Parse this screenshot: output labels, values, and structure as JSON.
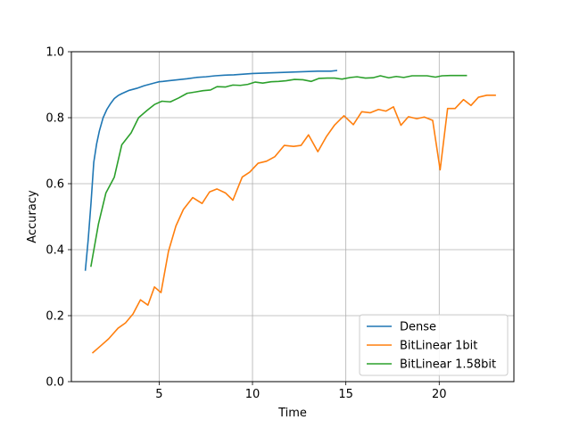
{
  "chart_data": {
    "type": "line",
    "title": "",
    "xlabel": "Time",
    "ylabel": "Accuracy",
    "xlim": [
      0.3,
      24.0
    ],
    "ylim": [
      0.0,
      1.0
    ],
    "xticks": [
      5,
      10,
      15,
      20
    ],
    "yticks": [
      0.0,
      0.2,
      0.4,
      0.6,
      0.8,
      1.0
    ],
    "xtick_labels": [
      "5",
      "10",
      "15",
      "20"
    ],
    "ytick_labels": [
      "0.0",
      "0.2",
      "0.4",
      "0.6",
      "0.8",
      "1.0"
    ],
    "grid": true,
    "legend_position": "lower-right",
    "series": [
      {
        "name": "Dense",
        "color": "#1f77b4",
        "x": [
          1.05,
          1.2,
          1.35,
          1.5,
          1.65,
          1.8,
          2.0,
          2.2,
          2.4,
          2.6,
          2.8,
          3.0,
          3.2,
          3.4,
          3.6,
          3.8,
          4.0,
          4.2,
          4.4,
          4.6,
          4.8,
          5.0,
          5.2,
          5.5,
          6.0,
          6.5,
          7.0,
          7.5,
          8.0,
          8.5,
          9.0,
          9.5,
          10.0,
          10.5,
          11.0,
          11.5,
          12.0,
          12.5,
          13.0,
          13.5,
          14.0,
          14.2,
          14.5
        ],
        "y": [
          0.338,
          0.43,
          0.54,
          0.665,
          0.72,
          0.76,
          0.8,
          0.825,
          0.843,
          0.858,
          0.867,
          0.873,
          0.878,
          0.883,
          0.886,
          0.889,
          0.893,
          0.897,
          0.9,
          0.903,
          0.906,
          0.909,
          0.91,
          0.912,
          0.915,
          0.918,
          0.922,
          0.924,
          0.927,
          0.929,
          0.93,
          0.932,
          0.934,
          0.935,
          0.936,
          0.937,
          0.938,
          0.939,
          0.94,
          0.941,
          0.941,
          0.941,
          0.943
        ]
      },
      {
        "name": "BitLinear 1bit",
        "color": "#ff7f0e",
        "x": [
          1.45,
          1.9,
          2.3,
          2.8,
          3.2,
          3.6,
          4.0,
          4.4,
          4.75,
          5.1,
          5.5,
          5.9,
          6.3,
          6.8,
          7.3,
          7.7,
          8.1,
          8.55,
          8.95,
          9.45,
          9.85,
          10.3,
          10.75,
          11.2,
          11.7,
          12.2,
          12.6,
          13.0,
          13.5,
          13.95,
          14.4,
          14.9,
          15.4,
          15.85,
          16.3,
          16.75,
          17.15,
          17.55,
          17.95,
          18.35,
          18.8,
          19.2,
          19.65,
          20.05,
          20.45,
          20.85,
          21.3,
          21.7,
          22.1,
          22.55,
          23.0
        ],
        "y": [
          0.088,
          0.11,
          0.13,
          0.162,
          0.178,
          0.205,
          0.248,
          0.232,
          0.287,
          0.27,
          0.395,
          0.472,
          0.522,
          0.558,
          0.54,
          0.575,
          0.584,
          0.572,
          0.55,
          0.62,
          0.635,
          0.662,
          0.668,
          0.682,
          0.716,
          0.713,
          0.716,
          0.748,
          0.697,
          0.742,
          0.778,
          0.806,
          0.779,
          0.818,
          0.815,
          0.825,
          0.82,
          0.833,
          0.777,
          0.803,
          0.797,
          0.802,
          0.792,
          0.642,
          0.828,
          0.828,
          0.855,
          0.837,
          0.862,
          0.868,
          0.868
        ]
      },
      {
        "name": "BitLinear 1.58bit",
        "color": "#2ca02c",
        "x": [
          1.35,
          1.75,
          2.15,
          2.6,
          3.0,
          3.5,
          3.9,
          4.35,
          4.75,
          5.15,
          5.6,
          6.05,
          6.5,
          6.95,
          7.35,
          7.75,
          8.1,
          8.55,
          8.95,
          9.35,
          9.75,
          10.15,
          10.55,
          11.0,
          11.4,
          11.8,
          12.25,
          12.7,
          13.15,
          13.55,
          14.0,
          14.4,
          14.8,
          15.25,
          15.6,
          16.05,
          16.45,
          16.85,
          17.3,
          17.7,
          18.1,
          18.55,
          18.95,
          19.35,
          19.8,
          20.15,
          20.6,
          21.05,
          21.45
        ],
        "y": [
          0.35,
          0.478,
          0.572,
          0.62,
          0.718,
          0.754,
          0.8,
          0.822,
          0.84,
          0.85,
          0.848,
          0.86,
          0.874,
          0.878,
          0.882,
          0.884,
          0.894,
          0.893,
          0.899,
          0.898,
          0.901,
          0.908,
          0.905,
          0.909,
          0.91,
          0.912,
          0.916,
          0.915,
          0.91,
          0.919,
          0.92,
          0.92,
          0.917,
          0.922,
          0.924,
          0.92,
          0.921,
          0.927,
          0.921,
          0.925,
          0.922,
          0.927,
          0.927,
          0.927,
          0.923,
          0.927,
          0.928,
          0.928,
          0.928
        ]
      }
    ]
  }
}
